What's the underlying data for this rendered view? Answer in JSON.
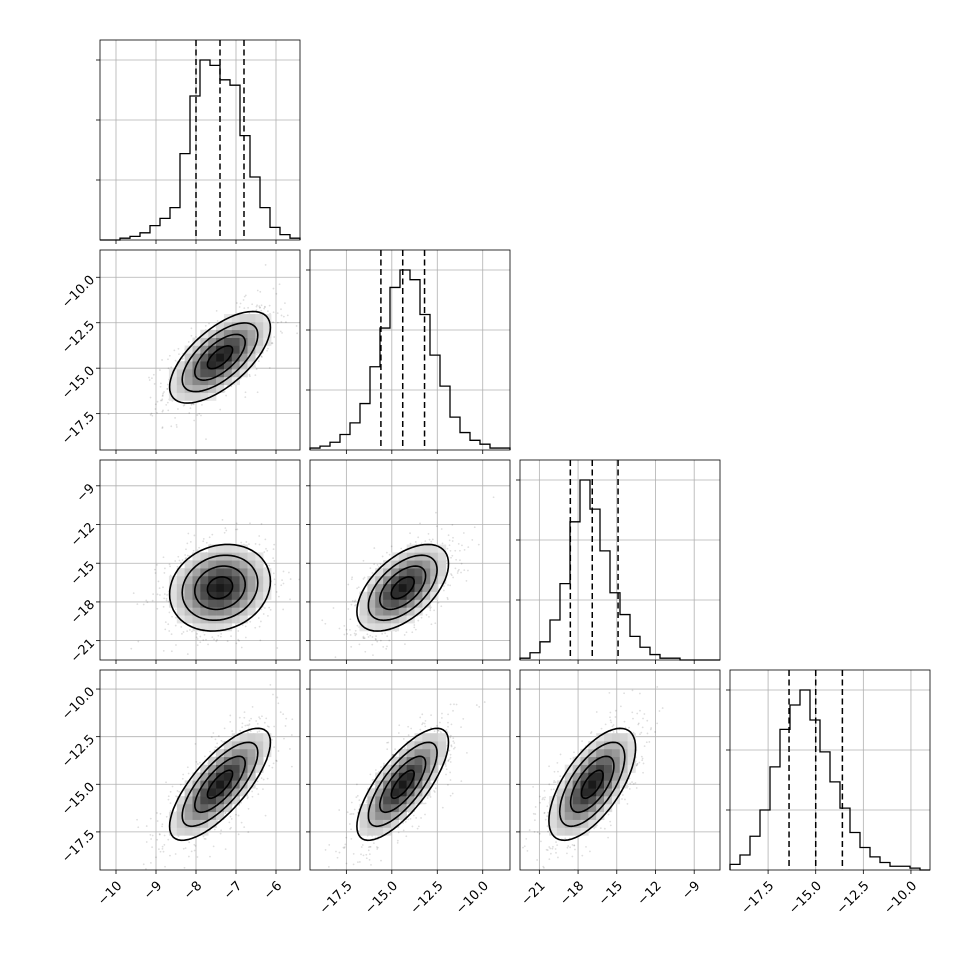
{
  "chart_data": {
    "type": "corner",
    "n_params": 4,
    "params": [
      {
        "range": [
          -10.4,
          -5.4
        ],
        "ticks": [
          -10,
          -9,
          -8,
          -7,
          -6
        ],
        "tick_labels": [
          "−10",
          "−9",
          "−8",
          "−7",
          "−6"
        ],
        "mean": -7.4,
        "sigma": 0.6,
        "quantiles": [
          -8.0,
          -7.4,
          -6.8
        ]
      },
      {
        "range": [
          -19.5,
          -8.5
        ],
        "ticks": [
          -17.5,
          -15.0,
          -12.5,
          -10.0
        ],
        "tick_labels": [
          "−17.5",
          "−15.0",
          "−12.5",
          "−10.0"
        ],
        "mean": -14.4,
        "sigma": 1.2,
        "quantiles": [
          -15.6,
          -14.4,
          -13.2
        ]
      },
      {
        "range": [
          -22.5,
          -7.0
        ],
        "ticks": [
          -21,
          -18,
          -15,
          -12,
          -9
        ],
        "tick_labels": [
          "−21",
          "−18",
          "−15",
          "−12",
          "−9"
        ],
        "mean": -16.9,
        "sigma": 1.6,
        "quantiles": [
          -18.6,
          -16.9,
          -14.9
        ]
      },
      {
        "range": [
          -19.5,
          -9.0
        ],
        "ticks": [
          -17.5,
          -15.0,
          -12.5,
          -10.0
        ],
        "tick_labels": [
          "−17.5",
          "−15.0",
          "−12.5",
          "−10.0"
        ],
        "mean": -15.0,
        "sigma": 1.4,
        "quantiles": [
          -16.4,
          -15.0,
          -13.6
        ]
      }
    ],
    "histograms": [
      {
        "param": 0,
        "bin_edges": [
          -10.4,
          -5.4
        ],
        "counts": [
          0,
          0,
          1,
          2,
          4,
          8,
          12,
          18,
          48,
          80,
          100,
          97,
          89,
          86,
          58,
          35,
          18,
          7,
          3,
          1
        ]
      },
      {
        "param": 1,
        "bin_edges": [
          -19.5,
          -8.5
        ],
        "counts": [
          1,
          2,
          4,
          8,
          14,
          24,
          43,
          63,
          84,
          93,
          88,
          70,
          49,
          33,
          17,
          9,
          5,
          3,
          1,
          1
        ]
      },
      {
        "param": 2,
        "bin_edges": [
          -22.5,
          -7.0
        ],
        "counts": [
          1,
          4,
          10,
          22,
          42,
          76,
          99,
          83,
          60,
          37,
          25,
          13,
          7,
          3,
          1,
          1,
          0,
          0,
          0,
          0
        ]
      },
      {
        "param": 3,
        "bin_edges": [
          -19.5,
          -9.0
        ],
        "counts": [
          3,
          8,
          18,
          32,
          55,
          75,
          88,
          96,
          80,
          63,
          47,
          33,
          20,
          12,
          7,
          4,
          2,
          2,
          1,
          0
        ]
      }
    ],
    "pairs": [
      {
        "x_param": 0,
        "y_param": 1,
        "correlation": 0.65
      },
      {
        "x_param": 0,
        "y_param": 2,
        "correlation": 0.15
      },
      {
        "x_param": 1,
        "y_param": 2,
        "correlation": 0.55
      },
      {
        "x_param": 0,
        "y_param": 3,
        "correlation": 0.75
      },
      {
        "x_param": 1,
        "y_param": 3,
        "correlation": 0.75
      },
      {
        "x_param": 2,
        "y_param": 3,
        "correlation": 0.65
      }
    ],
    "contour_levels_sigma": [
      0.5,
      1.0,
      1.5,
      2.0
    ],
    "grid": true,
    "colors": {
      "line": "#000000",
      "grid": "#b0b0b0",
      "background": "#ffffff"
    }
  }
}
